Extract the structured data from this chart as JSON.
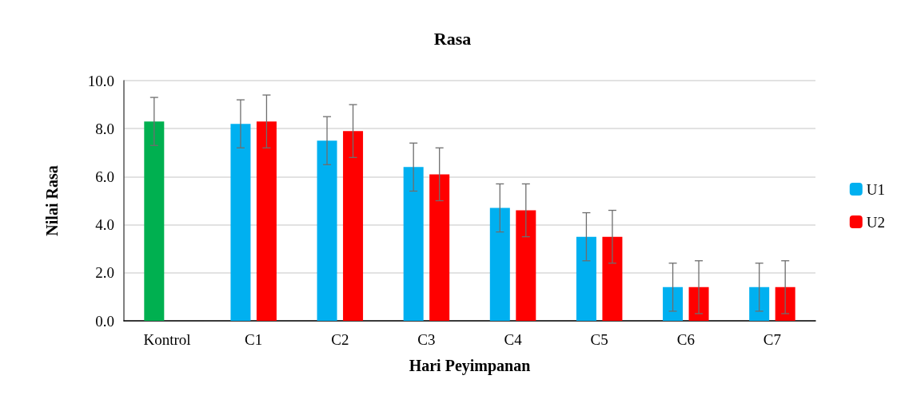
{
  "chart_data": {
    "type": "bar",
    "title": "Rasa",
    "xlabel": "Hari Peyimpanan",
    "ylabel": "Nilai Rasa",
    "categories": [
      "Kontrol",
      "C1",
      "C2",
      "C3",
      "C4",
      "C5",
      "C6",
      "C7"
    ],
    "series": [
      {
        "name": "U1",
        "color": "#00b0f0",
        "colors": [
          "#00b050",
          "#00b0f0",
          "#00b0f0",
          "#00b0f0",
          "#00b0f0",
          "#00b0f0",
          "#00b0f0",
          "#00b0f0"
        ],
        "values": [
          8.3,
          8.2,
          7.5,
          6.4,
          4.7,
          3.5,
          1.4,
          1.4
        ],
        "errors": [
          1.0,
          1.0,
          1.0,
          1.0,
          1.0,
          1.0,
          1.0,
          1.0
        ]
      },
      {
        "name": "U2",
        "color": "#ff0000",
        "values": [
          null,
          8.3,
          7.9,
          6.1,
          4.6,
          3.5,
          1.4,
          1.4
        ],
        "errors": [
          null,
          1.1,
          1.1,
          1.1,
          1.1,
          1.1,
          1.1,
          1.1
        ]
      }
    ],
    "ylim": [
      0,
      10
    ],
    "yticks": [
      {
        "value": 0,
        "label": "0.0"
      },
      {
        "value": 2,
        "label": "2.0"
      },
      {
        "value": 4,
        "label": "4.0"
      },
      {
        "value": 6,
        "label": "6.0"
      },
      {
        "value": 8,
        "label": "8.0"
      },
      {
        "value": 10,
        "label": "10.0"
      }
    ],
    "grid": "y",
    "legend": "right"
  }
}
